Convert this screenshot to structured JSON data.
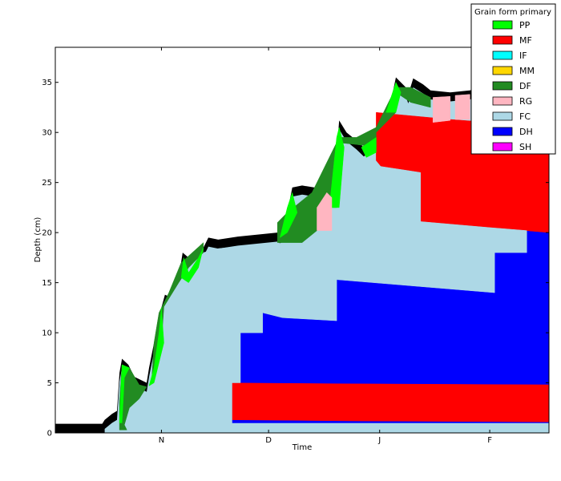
{
  "chart_data": {
    "type": "area",
    "xlabel": "Time",
    "ylabel": "Depth (cm)",
    "ylim": [
      0,
      38.5
    ],
    "yticks": [
      0,
      5,
      10,
      15,
      20,
      25,
      30,
      35
    ],
    "xticks": [
      "N",
      "D",
      "J",
      "F"
    ],
    "legend": {
      "title": "Grain form primary",
      "placement": "top-right",
      "entries": [
        {
          "name": "PP",
          "color": "#00ff00"
        },
        {
          "name": "MF",
          "color": "#ff0000"
        },
        {
          "name": "IF",
          "color": "#00ffff"
        },
        {
          "name": "MM",
          "color": "#ffd700"
        },
        {
          "name": "DF",
          "color": "#228b22"
        },
        {
          "name": "RG",
          "color": "#ffb6c1"
        },
        {
          "name": "FC",
          "color": "#add8e6"
        },
        {
          "name": "DH",
          "color": "#0000ff"
        },
        {
          "name": "SH",
          "color": "#ff00ff"
        }
      ]
    },
    "snow_depth_profile": [
      [
        0,
        0.9
      ],
      [
        0.095,
        0.9
      ],
      [
        0.1,
        1.3
      ],
      [
        0.115,
        1.9
      ],
      [
        0.125,
        2.2
      ],
      [
        0.13,
        6
      ],
      [
        0.135,
        7.4
      ],
      [
        0.148,
        6.8
      ],
      [
        0.16,
        5.6
      ],
      [
        0.185,
        5.0
      ],
      [
        0.19,
        6.5
      ],
      [
        0.2,
        9.0
      ],
      [
        0.215,
        12.5
      ],
      [
        0.222,
        13.8
      ],
      [
        0.235,
        13.5
      ],
      [
        0.25,
        15.5
      ],
      [
        0.258,
        18
      ],
      [
        0.27,
        17.5
      ],
      [
        0.29,
        17
      ],
      [
        0.3,
        18.5
      ],
      [
        0.31,
        19.5
      ],
      [
        0.33,
        19.3
      ],
      [
        0.37,
        19.6
      ],
      [
        0.45,
        20.0
      ],
      [
        0.465,
        19.5
      ],
      [
        0.47,
        22
      ],
      [
        0.48,
        24.5
      ],
      [
        0.5,
        24.7
      ],
      [
        0.55,
        24.3
      ],
      [
        0.56,
        23.8
      ],
      [
        0.57,
        28
      ],
      [
        0.575,
        31.2
      ],
      [
        0.59,
        30
      ],
      [
        0.61,
        29.2
      ],
      [
        0.625,
        28.5
      ],
      [
        0.65,
        29.5
      ],
      [
        0.67,
        30
      ],
      [
        0.675,
        32
      ],
      [
        0.69,
        35.5
      ],
      [
        0.71,
        34.5
      ],
      [
        0.715,
        33.8
      ],
      [
        0.725,
        35.4
      ],
      [
        0.745,
        34.8
      ],
      [
        0.76,
        34.2
      ],
      [
        0.8,
        34
      ],
      [
        0.84,
        34.2
      ],
      [
        0.86,
        34.5
      ],
      [
        0.88,
        36
      ],
      [
        0.9,
        36.5
      ],
      [
        0.93,
        37
      ],
      [
        1.0,
        37.5
      ]
    ],
    "layers": [
      {
        "grain": "DH",
        "polygon": [
          [
            0.358,
            1.0
          ],
          [
            1.0,
            1.0
          ],
          [
            1.0,
            20.2
          ],
          [
            0.955,
            20.2
          ],
          [
            0.955,
            18.0
          ],
          [
            0.89,
            18.0
          ],
          [
            0.89,
            14.0
          ],
          [
            0.57,
            15.3
          ],
          [
            0.57,
            11.2
          ],
          [
            0.46,
            11.5
          ],
          [
            0.46,
            12.0
          ],
          [
            0.42,
            12.0
          ],
          [
            0.42,
            10.0
          ],
          [
            0.375,
            10.0
          ],
          [
            0.375,
            5.0
          ],
          [
            0.358,
            5.0
          ]
        ]
      },
      {
        "grain": "MF",
        "polygon": [
          [
            0.185,
            1.4
          ],
          [
            0.38,
            1.3
          ],
          [
            0.6,
            1.2
          ],
          [
            1.0,
            1.1
          ],
          [
            1.0,
            4.8
          ],
          [
            0.6,
            4.9
          ],
          [
            0.3,
            5.0
          ],
          [
            0.225,
            5.2
          ],
          [
            0.225,
            3.9
          ],
          [
            0.185,
            3.9
          ]
        ]
      },
      {
        "grain": "MF",
        "polygon": [
          [
            0.66,
            26.6
          ],
          [
            0.74,
            26.0
          ],
          [
            0.74,
            21.1
          ],
          [
            1.0,
            20.0
          ],
          [
            1.0,
            30.5
          ],
          [
            0.88,
            31.0
          ],
          [
            0.8,
            31.3
          ],
          [
            0.69,
            31.8
          ],
          [
            0.65,
            32.0
          ],
          [
            0.65,
            27.2
          ]
        ]
      },
      {
        "grain": "FC",
        "polygon": [
          [
            0.14,
            0.2
          ],
          [
            0.358,
            0.2
          ],
          [
            0.358,
            5.0
          ],
          [
            0.375,
            5.0
          ],
          [
            0.375,
            10.0
          ],
          [
            0.42,
            10.0
          ],
          [
            0.42,
            12.0
          ],
          [
            0.46,
            11.5
          ],
          [
            0.57,
            11.2
          ],
          [
            0.57,
            15.3
          ],
          [
            0.89,
            14.0
          ],
          [
            0.89,
            18.0
          ],
          [
            0.955,
            18.0
          ],
          [
            0.955,
            20.2
          ],
          [
            0.88,
            20.5
          ],
          [
            0.74,
            21.1
          ],
          [
            0.74,
            26.0
          ],
          [
            0.66,
            26.6
          ],
          [
            0.62,
            27.5
          ],
          [
            0.57,
            28.2
          ],
          [
            0.57,
            22.5
          ],
          [
            0.53,
            22.5
          ],
          [
            0.53,
            20.2
          ],
          [
            0.5,
            20.0
          ],
          [
            0.45,
            18.8
          ],
          [
            0.37,
            18.6
          ],
          [
            0.33,
            18.4
          ],
          [
            0.3,
            18.0
          ],
          [
            0.27,
            16.5
          ],
          [
            0.25,
            15.0
          ],
          [
            0.22,
            12.6
          ],
          [
            0.215,
            9.0
          ],
          [
            0.2,
            5.0
          ],
          [
            0.185,
            4.0
          ],
          [
            0.17,
            3.4
          ],
          [
            0.15,
            2.5
          ],
          [
            0.14,
            0.8
          ]
        ]
      },
      {
        "grain": "DF",
        "polygon": [
          [
            0.13,
            0.3
          ],
          [
            0.145,
            0.3
          ],
          [
            0.14,
            0.8
          ],
          [
            0.15,
            2.5
          ],
          [
            0.17,
            3.4
          ],
          [
            0.185,
            4.6
          ],
          [
            0.17,
            4.8
          ],
          [
            0.15,
            6.5
          ],
          [
            0.135,
            6.8
          ],
          [
            0.13,
            3
          ]
        ]
      },
      {
        "grain": "DF",
        "polygon": [
          [
            0.195,
            5.0
          ],
          [
            0.215,
            9.0
          ],
          [
            0.22,
            12.6
          ],
          [
            0.25,
            15.0
          ],
          [
            0.27,
            16.5
          ],
          [
            0.3,
            18.0
          ],
          [
            0.3,
            19.0
          ],
          [
            0.255,
            17.0
          ],
          [
            0.23,
            14.0
          ],
          [
            0.21,
            12.0
          ],
          [
            0.2,
            9.0
          ]
        ]
      },
      {
        "grain": "DF",
        "polygon": [
          [
            0.45,
            19.0
          ],
          [
            0.5,
            19.0
          ],
          [
            0.53,
            20.2
          ],
          [
            0.53,
            22.5
          ],
          [
            0.57,
            22.5
          ],
          [
            0.57,
            29.0
          ],
          [
            0.61,
            28.8
          ],
          [
            0.65,
            28.5
          ],
          [
            0.65,
            30.0
          ],
          [
            0.69,
            32.0
          ],
          [
            0.69,
            34.0
          ],
          [
            0.72,
            33.0
          ],
          [
            0.76,
            32.5
          ],
          [
            0.76,
            33.5
          ],
          [
            0.72,
            34.5
          ],
          [
            0.69,
            34.5
          ],
          [
            0.65,
            30.5
          ],
          [
            0.61,
            29.5
          ],
          [
            0.575,
            29.5
          ],
          [
            0.52,
            24.0
          ],
          [
            0.47,
            22.0
          ],
          [
            0.45,
            21.0
          ]
        ]
      },
      {
        "grain": "PP",
        "polygon": [
          [
            0.13,
            1.0
          ],
          [
            0.135,
            6.8
          ],
          [
            0.15,
            6.5
          ],
          [
            0.14,
            5.5
          ],
          [
            0.135,
            1.0
          ]
        ]
      },
      {
        "grain": "PP",
        "polygon": [
          [
            0.19,
            4.7
          ],
          [
            0.2,
            6.5
          ],
          [
            0.21,
            10.0
          ],
          [
            0.215,
            12.5
          ],
          [
            0.22,
            9.0
          ],
          [
            0.2,
            5.0
          ]
        ]
      },
      {
        "grain": "PP",
        "polygon": [
          [
            0.255,
            15.5
          ],
          [
            0.26,
            17.5
          ],
          [
            0.27,
            16.0
          ],
          [
            0.29,
            17.5
          ],
          [
            0.3,
            18.5
          ],
          [
            0.29,
            16.5
          ],
          [
            0.27,
            15.0
          ]
        ]
      },
      {
        "grain": "PP",
        "polygon": [
          [
            0.455,
            19.5
          ],
          [
            0.47,
            22.5
          ],
          [
            0.48,
            24.0
          ],
          [
            0.49,
            22.0
          ],
          [
            0.47,
            20.0
          ]
        ]
      },
      {
        "grain": "PP",
        "polygon": [
          [
            0.555,
            22.5
          ],
          [
            0.57,
            29.5
          ],
          [
            0.575,
            30.5
          ],
          [
            0.585,
            28.5
          ],
          [
            0.575,
            22.5
          ]
        ]
      },
      {
        "grain": "PP",
        "polygon": [
          [
            0.62,
            28.5
          ],
          [
            0.65,
            29.5
          ],
          [
            0.65,
            28.0
          ],
          [
            0.63,
            27.5
          ]
        ]
      },
      {
        "grain": "PP",
        "polygon": [
          [
            0.67,
            32.0
          ],
          [
            0.69,
            35.0
          ],
          [
            0.7,
            34.0
          ],
          [
            0.69,
            32.0
          ]
        ]
      },
      {
        "grain": "RG",
        "polygon": [
          [
            0.53,
            20.2
          ],
          [
            0.56,
            20.2
          ],
          [
            0.56,
            23.5
          ],
          [
            0.55,
            24.0
          ],
          [
            0.53,
            22.5
          ]
        ]
      },
      {
        "grain": "RG",
        "polygon": [
          [
            0.765,
            31.0
          ],
          [
            0.8,
            31.2
          ],
          [
            0.8,
            33.6
          ],
          [
            0.765,
            33.5
          ]
        ]
      },
      {
        "grain": "RG",
        "polygon": [
          [
            0.81,
            31.3
          ],
          [
            0.84,
            31.3
          ],
          [
            0.84,
            33.8
          ],
          [
            0.81,
            33.7
          ]
        ]
      }
    ]
  }
}
